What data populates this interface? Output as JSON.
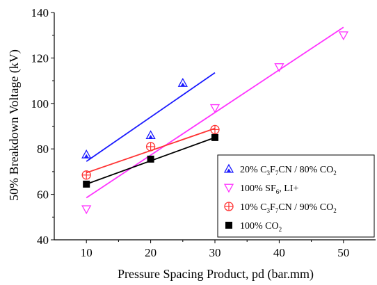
{
  "chart_data": {
    "type": "scatter",
    "xlabel": "Pressure Spacing Product, pd (bar.mm)",
    "ylabel": "50% Breakdown Voltage (kV)",
    "xlim": [
      5,
      55
    ],
    "ylim": [
      40,
      140
    ],
    "xticks": [
      10,
      20,
      30,
      40,
      50
    ],
    "yticks": [
      40,
      60,
      80,
      100,
      120,
      140
    ],
    "legend_position": "bottom-right",
    "series": [
      {
        "key": "c3f7cn20",
        "name": "20% C3F7CN / 80% CO2",
        "legend": {
          "p1": "20% C",
          "s1": "3",
          "p2": "F",
          "s2": "7",
          "p3": "CN / 80% CO",
          "s3": "2"
        },
        "color": "#1a1aff",
        "marker": "triangle-up",
        "x": [
          10,
          20,
          25
        ],
        "y": [
          77.5,
          86,
          109
        ],
        "fit": {
          "x": [
            10,
            30
          ],
          "y": [
            74.5,
            113.5
          ]
        }
      },
      {
        "key": "sf6",
        "name": "100% SF6, LI+",
        "legend": {
          "p1": "100% SF",
          "s1": "6",
          "p2": ", LI+"
        },
        "color": "#ff33ff",
        "marker": "triangle-down",
        "x": [
          10,
          30,
          40,
          50
        ],
        "y": [
          53.5,
          98,
          116,
          130
        ],
        "fit": {
          "x": [
            10,
            50
          ],
          "y": [
            58.5,
            133.5
          ]
        }
      },
      {
        "key": "c3f7cn10",
        "name": "10% C3F7CN / 90% CO2",
        "legend": {
          "p1": "10% C",
          "s1": "3",
          "p2": "F",
          "s2": "7",
          "p3": "CN / 90% CO",
          "s3": "2"
        },
        "color": "#ff3333",
        "marker": "circle-plus",
        "x": [
          10,
          20,
          30
        ],
        "y": [
          68.5,
          81,
          88.5
        ],
        "fit": {
          "x": [
            10,
            30
          ],
          "y": [
            69.5,
            89
          ]
        }
      },
      {
        "key": "co2",
        "name": "100% CO2",
        "legend": {
          "p1": "100% CO",
          "s1": "2"
        },
        "color": "#000000",
        "marker": "square",
        "x": [
          10,
          20,
          30
        ],
        "y": [
          64.5,
          75.5,
          85
        ],
        "fit": {
          "x": [
            10,
            30
          ],
          "y": [
            64.5,
            85
          ]
        }
      }
    ]
  }
}
